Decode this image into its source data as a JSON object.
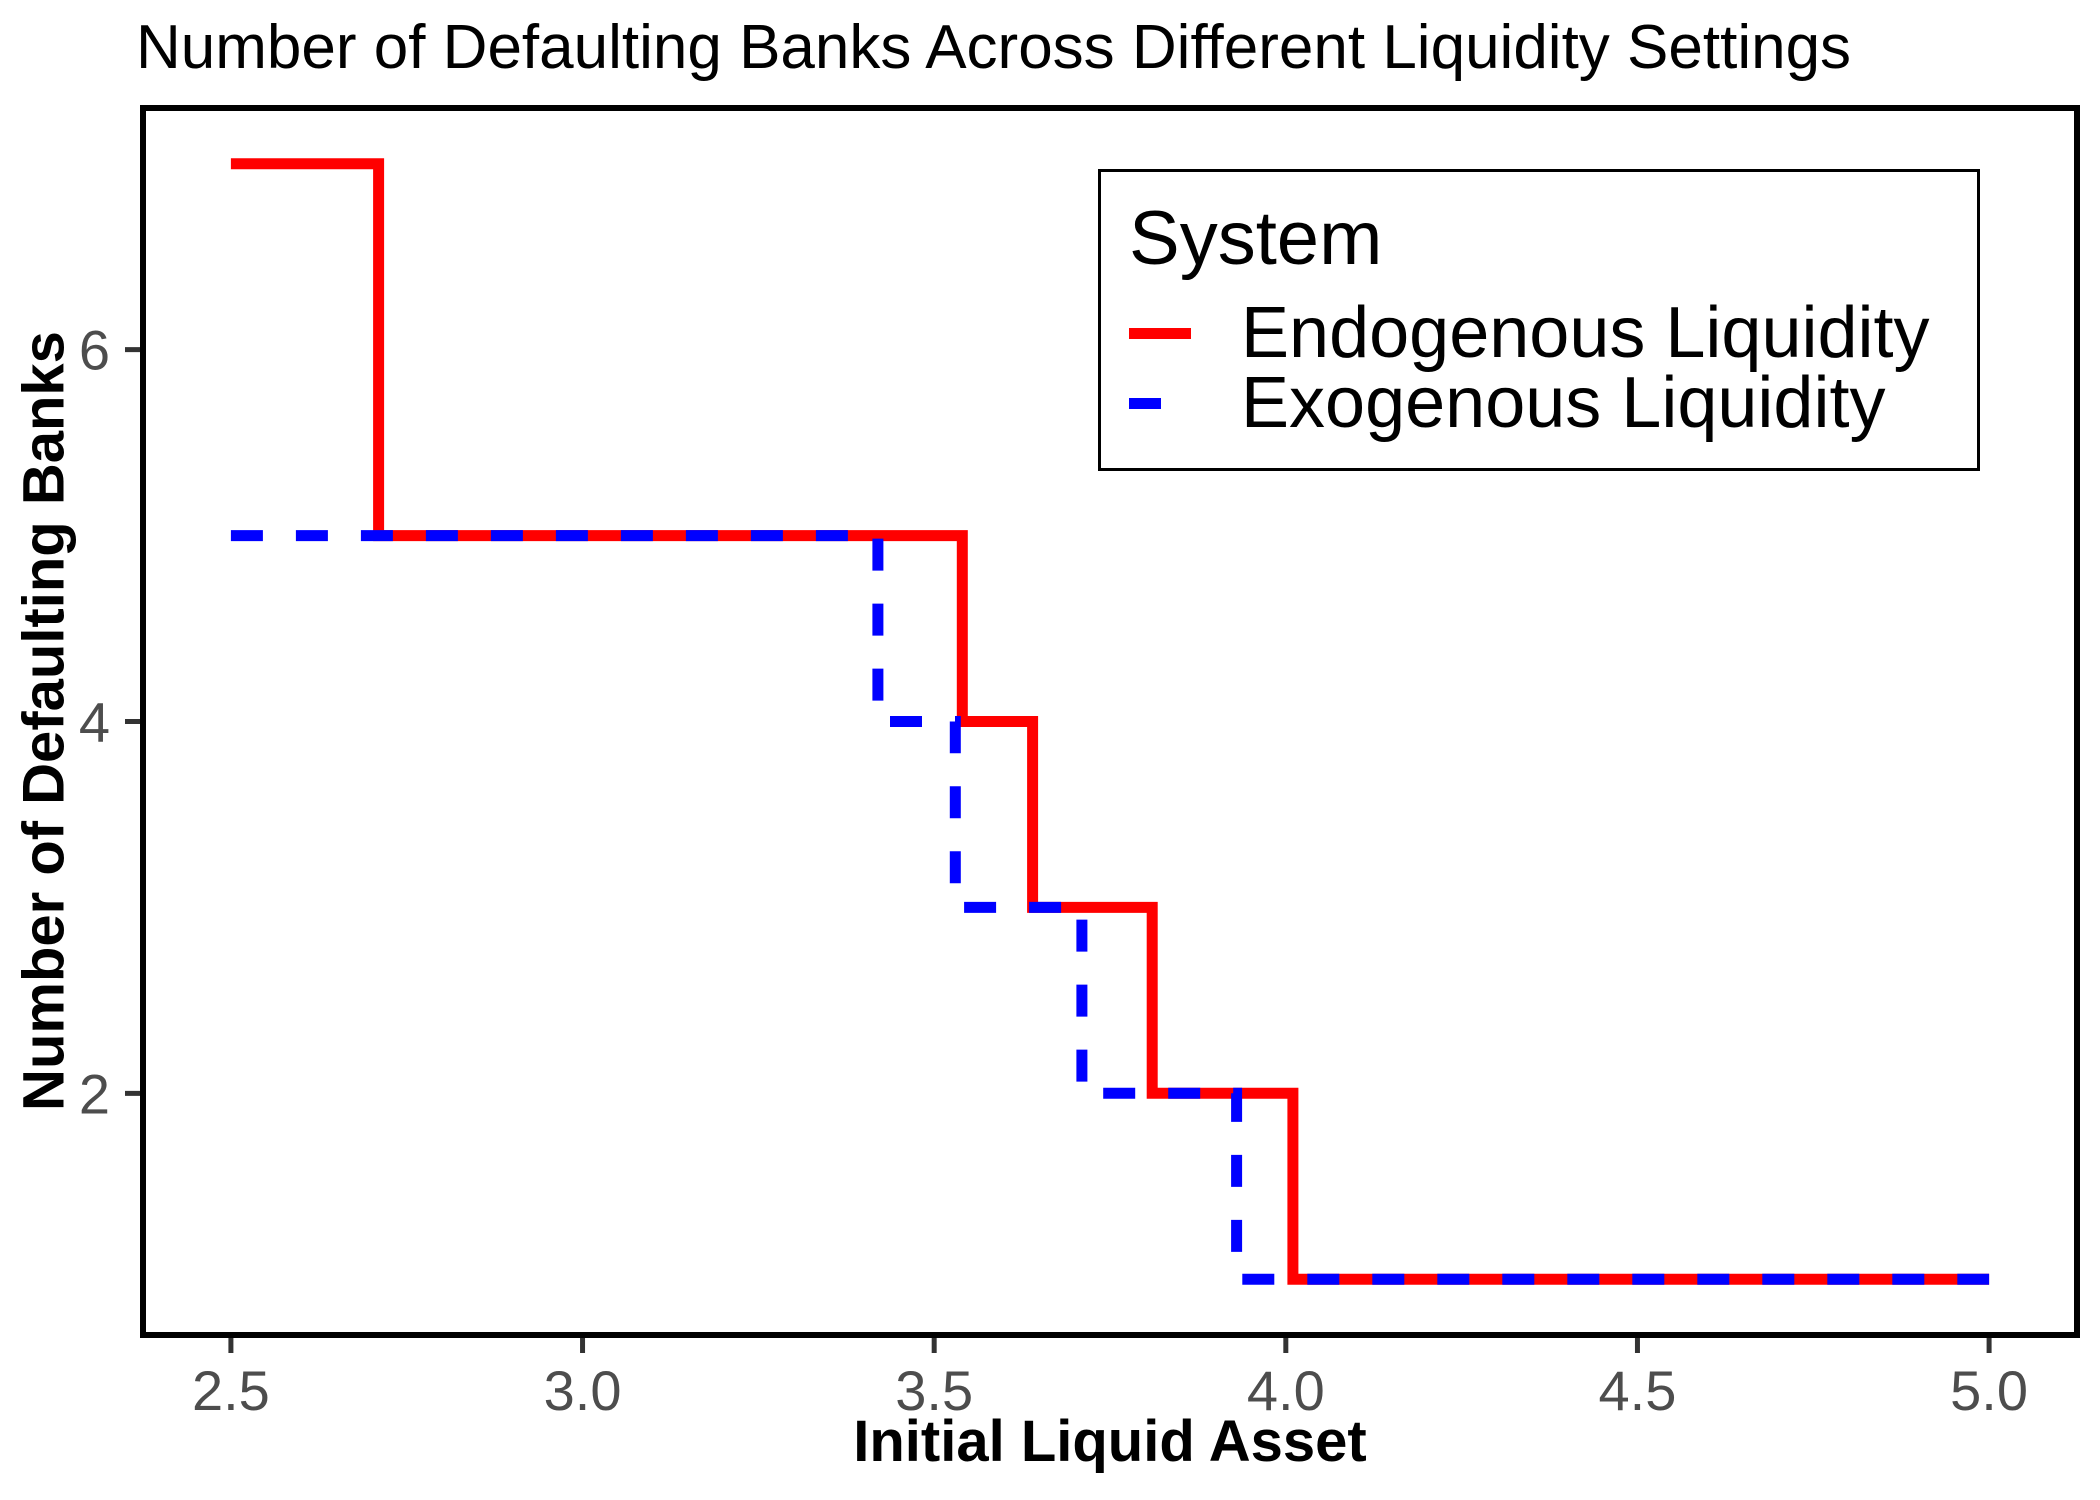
{
  "title": "Number of Defaulting Banks Across Different Liquidity Settings",
  "x_axis": {
    "label": "Initial Liquid Asset",
    "tick_labels": [
      "2.5",
      "3.0",
      "3.5",
      "4.0",
      "4.5",
      "5.0"
    ]
  },
  "y_axis": {
    "label": "Number of Defaulting Banks",
    "tick_labels": [
      "2",
      "4",
      "6"
    ]
  },
  "legend": {
    "title": "System",
    "items": [
      {
        "label": "Endogenous Liquidity",
        "color": "#ff0000",
        "style": "solid"
      },
      {
        "label": "Exogenous Liquidity",
        "color": "#0000ff",
        "style": "dashed"
      }
    ]
  },
  "colors": {
    "endogenous": "#ff0000",
    "exogenous": "#0000ff",
    "tick_text": "#4d4d4d",
    "tick_mark": "#333333",
    "panel_border": "#000000",
    "background": "#ffffff"
  },
  "chart_data": {
    "type": "line",
    "subtype": "step",
    "title": "Number of Defaulting Banks Across Different Liquidity Settings",
    "xlabel": "Initial Liquid Asset",
    "ylabel": "Number of Defaulting Banks",
    "xlim": [
      2.375,
      5.125
    ],
    "ylim": [
      0.7,
      7.3
    ],
    "x_ticks": [
      2.5,
      3.0,
      3.5,
      4.0,
      4.5,
      5.0
    ],
    "y_ticks": [
      2,
      4,
      6
    ],
    "grid": false,
    "legend_position": "inside-top-right",
    "series": [
      {
        "name": "Endogenous Liquidity",
        "color": "#ff0000",
        "linetype": "solid",
        "points": [
          [
            2.5,
            7
          ],
          [
            2.71,
            7
          ],
          [
            2.71,
            5
          ],
          [
            3.54,
            5
          ],
          [
            3.54,
            4
          ],
          [
            3.64,
            4
          ],
          [
            3.64,
            3
          ],
          [
            3.81,
            3
          ],
          [
            3.81,
            2
          ],
          [
            4.01,
            2
          ],
          [
            4.01,
            1
          ],
          [
            5.0,
            1
          ]
        ]
      },
      {
        "name": "Exogenous Liquidity",
        "color": "#0000ff",
        "linetype": "dashed",
        "points": [
          [
            2.5,
            5
          ],
          [
            3.42,
            5
          ],
          [
            3.42,
            4
          ],
          [
            3.53,
            4
          ],
          [
            3.53,
            3
          ],
          [
            3.71,
            3
          ],
          [
            3.71,
            2
          ],
          [
            3.93,
            2
          ],
          [
            3.93,
            1
          ],
          [
            5.0,
            1
          ]
        ]
      }
    ]
  }
}
